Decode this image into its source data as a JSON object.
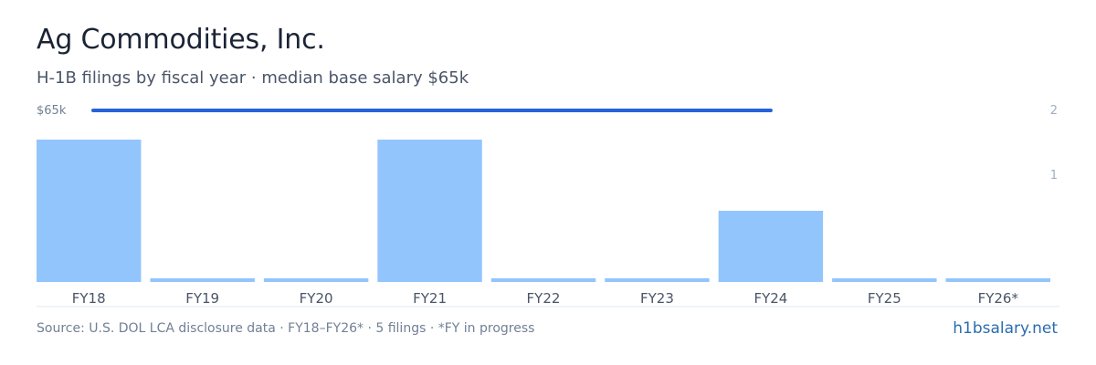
{
  "header": {
    "title": "Ag Commodities, Inc.",
    "subtitle": "H-1B filings by fiscal year · median base salary $65k"
  },
  "footer": {
    "source": "Source: U.S. DOL LCA disclosure data · FY18–FY26* · 5 filings · *FY in progress",
    "brand": "h1bsalary.net"
  },
  "chart_data": {
    "type": "bar",
    "categories": [
      "FY18",
      "FY19",
      "FY20",
      "FY21",
      "FY22",
      "FY23",
      "FY24",
      "FY25",
      "FY26*"
    ],
    "series": [
      {
        "values": [
          2,
          0,
          0,
          2,
          0,
          0,
          1,
          0,
          0
        ]
      }
    ],
    "salary_line": {
      "label": "$65k",
      "value": 65000,
      "covers_categories": [
        "FY18",
        "FY19",
        "FY20",
        "FY21",
        "FY22",
        "FY23",
        "FY24"
      ]
    },
    "y_right_ticks": [
      "2",
      "1"
    ],
    "ylim": [
      0,
      2
    ],
    "colors": {
      "bar": "#93c5fd",
      "line": "#2563d9",
      "axis": "#e2e8f0"
    }
  }
}
